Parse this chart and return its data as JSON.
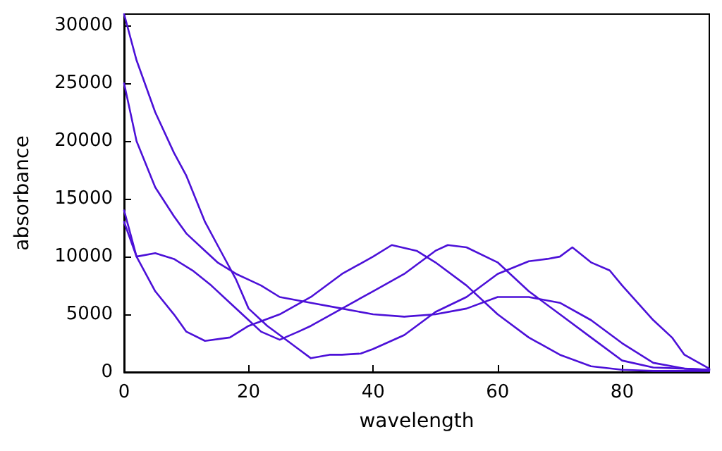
{
  "chart_data": {
    "type": "line",
    "xlabel": "wavelength",
    "ylabel": "absorbance",
    "xlim": [
      0,
      94
    ],
    "ylim": [
      0,
      31000
    ],
    "xticks": [
      0,
      20,
      40,
      60,
      80
    ],
    "yticks": [
      0,
      5000,
      10000,
      15000,
      20000,
      25000,
      30000
    ],
    "grid": false,
    "marker": "none",
    "line_style": "solid",
    "series": [
      {
        "color": "#4c10d8",
        "x": [
          0,
          2,
          5,
          8,
          10,
          13,
          15,
          18,
          20,
          23,
          25,
          28,
          30,
          33,
          35,
          38,
          40,
          45,
          50,
          55,
          60,
          65,
          68,
          70,
          72,
          75,
          78,
          80,
          85,
          88,
          90,
          94
        ],
        "values": [
          31000,
          27000,
          22500,
          19000,
          17000,
          13000,
          11000,
          8000,
          5500,
          4000,
          3200,
          2000,
          1200,
          1500,
          1500,
          1600,
          2000,
          3200,
          5200,
          6500,
          8500,
          9600,
          9800,
          10000,
          10800,
          9500,
          8800,
          7500,
          4500,
          3000,
          1500,
          300
        ]
      },
      {
        "color": "#4c10d8",
        "x": [
          0,
          2,
          5,
          8,
          10,
          13,
          15,
          18,
          20,
          22,
          25,
          30,
          35,
          40,
          45,
          50,
          55,
          60,
          65,
          70,
          75,
          80,
          85,
          90,
          94
        ],
        "values": [
          25000,
          20000,
          16000,
          13500,
          12000,
          10500,
          9500,
          8500,
          8000,
          7500,
          6500,
          6000,
          5500,
          5000,
          4800,
          5000,
          5500,
          6500,
          6500,
          6000,
          4500,
          2500,
          800,
          300,
          200
        ]
      },
      {
        "color": "#4c10d8",
        "x": [
          0,
          2,
          5,
          8,
          10,
          13,
          17,
          20,
          25,
          30,
          35,
          40,
          43,
          47,
          50,
          55,
          60,
          65,
          70,
          75,
          80,
          85,
          90,
          94
        ],
        "values": [
          14000,
          10000,
          7000,
          5000,
          3500,
          2700,
          3000,
          4000,
          5000,
          6500,
          8500,
          10000,
          11000,
          10500,
          9500,
          7500,
          5000,
          3000,
          1500,
          500,
          200,
          100,
          100,
          100
        ]
      },
      {
        "color": "#4c10d8",
        "x": [
          0,
          2,
          5,
          8,
          11,
          14,
          17,
          20,
          22,
          25,
          28,
          30,
          35,
          40,
          45,
          50,
          52,
          55,
          60,
          65,
          70,
          75,
          80,
          85,
          90,
          94
        ],
        "values": [
          13000,
          10000,
          10300,
          9800,
          8800,
          7500,
          6000,
          4500,
          3500,
          2800,
          3500,
          4000,
          5500,
          7000,
          8500,
          10500,
          11000,
          10800,
          9500,
          7000,
          5000,
          3000,
          1000,
          400,
          300,
          200
        ]
      }
    ]
  }
}
